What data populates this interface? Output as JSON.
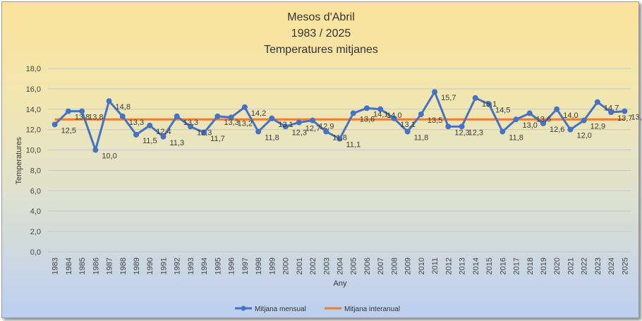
{
  "chart_data": {
    "type": "line",
    "title": [
      "Mesos d'Abril",
      "1983 / 2025",
      "Temperatures mitjanes"
    ],
    "xlabel": "Any",
    "ylabel": "Temperatures",
    "ylim": [
      0,
      18
    ],
    "yticks": [
      "0,0",
      "2,0",
      "4,0",
      "6,0",
      "8,0",
      "10,0",
      "12,0",
      "14,0",
      "16,0",
      "18,0"
    ],
    "categories": [
      "1983",
      "1984",
      "1985",
      "1986",
      "1987",
      "1988",
      "1989",
      "1990",
      "1991",
      "1992",
      "1993",
      "1994",
      "1995",
      "1996",
      "1997",
      "1998",
      "1999",
      "2000",
      "2001",
      "2002",
      "2003",
      "2004",
      "2005",
      "2006",
      "2007",
      "2008",
      "2009",
      "2010",
      "2011",
      "2012",
      "2013",
      "2014",
      "2015",
      "2016",
      "2017",
      "2018",
      "2019",
      "2020",
      "2021",
      "2022",
      "2023",
      "2024",
      "2025"
    ],
    "grid": true,
    "legend_position": "bottom",
    "series": [
      {
        "name": "Mitjana mensual",
        "color": "#4472c4",
        "values": [
          12.5,
          13.8,
          13.8,
          10.0,
          14.8,
          13.3,
          11.5,
          12.4,
          11.3,
          13.3,
          12.3,
          11.7,
          13.3,
          13.2,
          14.2,
          11.8,
          13.1,
          12.3,
          12.7,
          12.9,
          11.8,
          11.1,
          13.6,
          14.1,
          14.0,
          13.1,
          11.8,
          13.5,
          15.7,
          12.3,
          12.3,
          15.1,
          14.5,
          11.8,
          13.0,
          13.6,
          12.6,
          14.0,
          12.0,
          12.9,
          14.7,
          13.7,
          13.8
        ],
        "labels": [
          "12,5",
          "13,8",
          "13,8",
          "10,0",
          "14,8",
          "13,3",
          "11,5",
          "12,4",
          "11,3",
          "13,3",
          "12,3",
          "11,7",
          "13,3",
          "13,2",
          "14,2",
          "11,8",
          "13,1",
          "12,3",
          "12,7",
          "12,9",
          "11,8",
          "11,1",
          "13,6",
          "14,1",
          "14,0",
          "13,1",
          "11,8",
          "13,5",
          "15,7",
          "12,3",
          "12,3",
          "15,1",
          "14,5",
          "11,8",
          "13,0",
          "13,6",
          "12,6",
          "14,0",
          "12,0",
          "12,9",
          "14,7",
          "13,7",
          "13,8"
        ]
      },
      {
        "name": "Mitjana interanual",
        "color": "#ed7d31",
        "values": [
          13.0,
          13.0,
          13.0,
          13.0,
          13.0,
          13.0,
          13.0,
          13.0,
          13.0,
          13.0,
          13.0,
          13.0,
          13.0,
          13.0,
          13.0,
          13.0,
          13.0,
          13.0,
          13.0,
          13.0,
          13.0,
          13.0,
          13.0,
          13.0,
          13.0,
          13.0,
          13.0,
          13.0,
          13.0,
          13.0,
          13.0,
          13.0,
          13.0,
          13.0,
          13.0,
          13.0,
          13.0,
          13.0,
          13.0,
          13.0,
          13.0,
          13.0,
          13.0
        ]
      }
    ]
  }
}
